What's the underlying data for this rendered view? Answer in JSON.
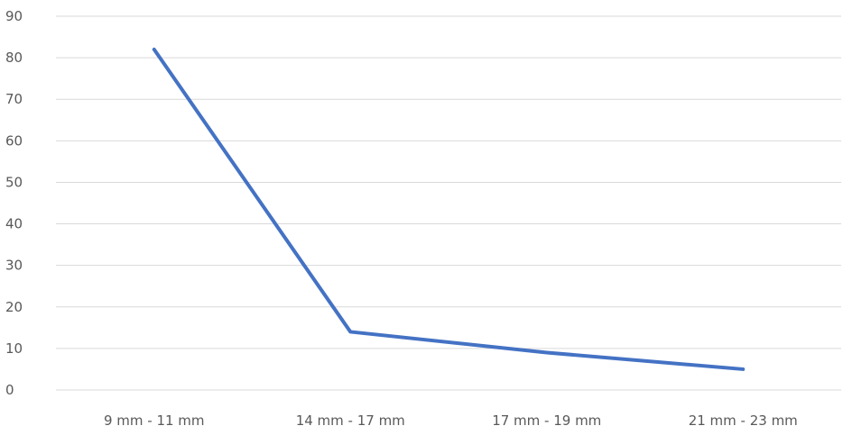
{
  "chart_data": {
    "type": "line",
    "title": "",
    "xlabel": "",
    "ylabel": "",
    "categories": [
      "9 mm - 11 mm",
      "14 mm - 17 mm",
      "17 mm - 19 mm",
      "21 mm - 23 mm"
    ],
    "series": [
      {
        "values": [
          82,
          14,
          9,
          5
        ],
        "color": "#4472c4"
      }
    ],
    "ylim": [
      0,
      90
    ],
    "yticks": [
      0,
      10,
      20,
      30,
      40,
      50,
      60,
      70,
      80,
      90
    ],
    "grid": true,
    "legend": "none",
    "colors": {
      "grid": "#d9d9d9",
      "tick_text": "#595959"
    }
  }
}
